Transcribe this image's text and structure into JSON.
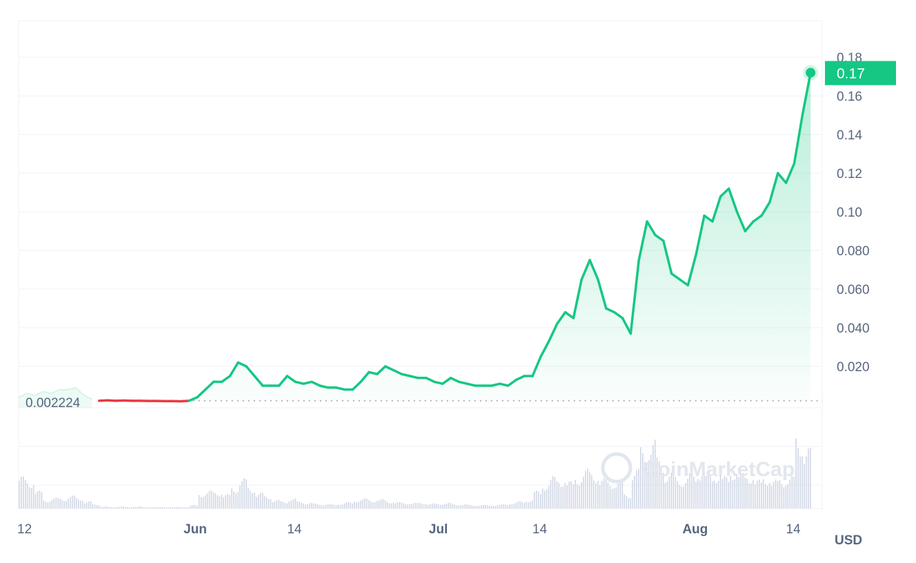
{
  "chart_data": {
    "type": "line",
    "ylim": [
      0,
      0.19
    ],
    "y_ticks": [
      "0.020",
      "0.040",
      "0.060",
      "0.080",
      "0.10",
      "0.12",
      "0.14",
      "0.16",
      "0.18"
    ],
    "x_ticks": [
      {
        "label": "12",
        "day": 0,
        "bold": false
      },
      {
        "label": "Jun",
        "day": 20,
        "bold": true
      },
      {
        "label": "14",
        "day": 33,
        "bold": false
      },
      {
        "label": "Jul",
        "day": 50,
        "bold": true
      },
      {
        "label": "14",
        "day": 63,
        "bold": false
      },
      {
        "label": "Aug",
        "day": 81,
        "bold": true
      },
      {
        "label": "14",
        "day": 94,
        "bold": false
      }
    ],
    "unit_label": "USD",
    "grid": true,
    "baseline_price": 0.002224,
    "baseline_label": "0.002224",
    "current_price_label": "0.17",
    "watermark": "CoinMarketCap",
    "colors": {
      "up": "#16c784",
      "down": "#ea3943",
      "grid": "#eff2f5",
      "label": "#58667e",
      "volume": "#cfd6e4"
    },
    "context_series": [
      0.004,
      0.006,
      0.005,
      0.007,
      0.006,
      0.008,
      0.008,
      0.009,
      0.005,
      0.003
    ],
    "series": [
      {
        "start_day": 9,
        "values": [
          0.0022,
          0.0024,
          0.0022,
          0.0023,
          0.0022,
          0.0022,
          0.0021,
          0.0021,
          0.002,
          0.002,
          0.0019,
          0.0022,
          0.004,
          0.008,
          0.012,
          0.012,
          0.015,
          0.022,
          0.02,
          0.015,
          0.01,
          0.01,
          0.01,
          0.015,
          0.012,
          0.011,
          0.012,
          0.01,
          0.009,
          0.009,
          0.008,
          0.008,
          0.012,
          0.017,
          0.016,
          0.02,
          0.018,
          0.016,
          0.015,
          0.014,
          0.014,
          0.012,
          0.011,
          0.014,
          0.012,
          0.011,
          0.01,
          0.01,
          0.01,
          0.011,
          0.01,
          0.013,
          0.015,
          0.015,
          0.025,
          0.033,
          0.042,
          0.048,
          0.045,
          0.065,
          0.075,
          0.065,
          0.05,
          0.048,
          0.045,
          0.037,
          0.075,
          0.095,
          0.088,
          0.085,
          0.068,
          0.065,
          0.062,
          0.078,
          0.098,
          0.095,
          0.108,
          0.112,
          0.1,
          0.09,
          0.095,
          0.098,
          0.105,
          0.12,
          0.115,
          0.125,
          0.15,
          0.172
        ]
      }
    ],
    "volume_relative": [
      0.45,
      0.4,
      0.25,
      0.12,
      0.15,
      0.14,
      0.18,
      0.15,
      0.1,
      0.06,
      0.03,
      0.02,
      0.03,
      0.02,
      0.03,
      0.02,
      0.02,
      0.02,
      0.02,
      0.02,
      0.02,
      0.05,
      0.22,
      0.25,
      0.24,
      0.2,
      0.3,
      0.42,
      0.3,
      0.22,
      0.18,
      0.12,
      0.1,
      0.14,
      0.1,
      0.08,
      0.07,
      0.06,
      0.06,
      0.07,
      0.09,
      0.12,
      0.14,
      0.12,
      0.13,
      0.1,
      0.09,
      0.08,
      0.08,
      0.08,
      0.07,
      0.07,
      0.08,
      0.06,
      0.06,
      0.05,
      0.05,
      0.05,
      0.05,
      0.06,
      0.08,
      0.1,
      0.12,
      0.25,
      0.35,
      0.45,
      0.42,
      0.38,
      0.45,
      0.55,
      0.5,
      0.42,
      0.38,
      0.4,
      0.2,
      0.55,
      0.85,
      0.95,
      0.7,
      0.5,
      0.45,
      0.42,
      0.5,
      0.55,
      0.48,
      0.5,
      0.45,
      0.55,
      0.5,
      0.48,
      0.4,
      0.45,
      0.4,
      0.42,
      0.45,
      1.0,
      0.85
    ]
  }
}
